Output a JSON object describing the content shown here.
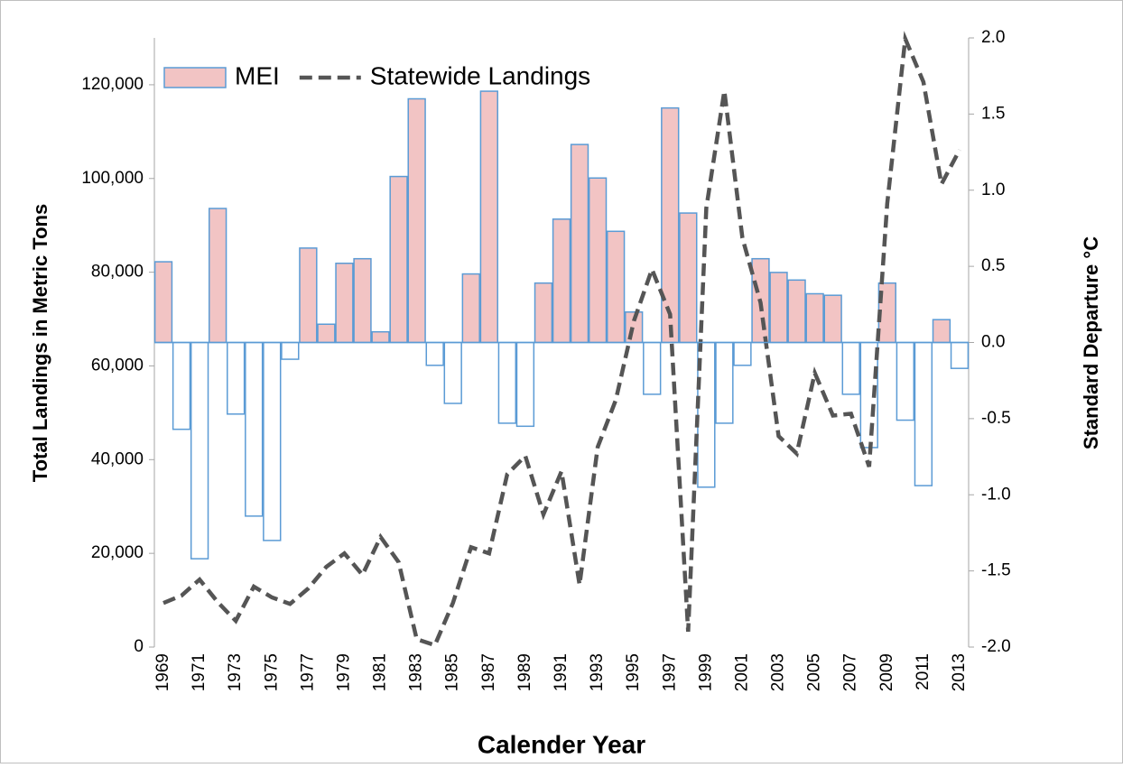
{
  "chart_data": {
    "type": "bar",
    "x_label": "Calender Year",
    "y_label": "Total Landings in Metric Tons",
    "y2_label": "Standard Departure °C",
    "categories": [
      "1969",
      null,
      "1971",
      null,
      "1973",
      null,
      "1975",
      null,
      "1977",
      null,
      "1979",
      null,
      "1981",
      null,
      "1983",
      null,
      "1985",
      null,
      "1987",
      null,
      "1989",
      null,
      "1991",
      null,
      "1993",
      null,
      "1995",
      null,
      "1997",
      null,
      "1999",
      null,
      "2001",
      null,
      "2003",
      null,
      "2005",
      null,
      "2007",
      null,
      "2009",
      null,
      "2011",
      null,
      "2013"
    ],
    "ylim": [
      0,
      130000
    ],
    "yticks": [
      0,
      {
        "value": 20000,
        "label": "20,000"
      },
      {
        "value": 40000,
        "label": "40,000"
      },
      {
        "value": 60000,
        "label": "60,000"
      },
      {
        "value": 80000,
        "label": "80,000"
      },
      {
        "value": 100000,
        "label": "100,000"
      },
      {
        "value": 120000,
        "label": "120,000"
      }
    ],
    "y2lim": [
      -2,
      2
    ],
    "y2ticks": [
      {
        "value": -2,
        "label": "-2.0"
      },
      {
        "value": -1.5,
        "label": "-1.5"
      },
      {
        "value": -1,
        "label": "-1.0"
      },
      {
        "value": -0.5,
        "label": "-0.5"
      },
      {
        "value": 0,
        "label": "0.0"
      },
      {
        "value": 0.5,
        "label": "0.5"
      },
      {
        "value": 1,
        "label": "1.0"
      },
      {
        "value": 1.5,
        "label": "1.5"
      },
      {
        "value": 2,
        "label": "2.0"
      }
    ],
    "legend": "upper left",
    "series": [
      {
        "name": "MEI",
        "type": "bar",
        "axis": "y2",
        "color": "#f2c4c4",
        "negative_color": "#ffffff",
        "edge_color": "#5b9bd5",
        "values": [
          0.53,
          -0.57,
          -1.42,
          0.88,
          -0.47,
          -1.14,
          -1.3,
          -0.11,
          0.62,
          0.12,
          0.52,
          0.55,
          0.07,
          1.09,
          1.6,
          -0.15,
          -0.4,
          0.45,
          1.65,
          -0.53,
          -0.55,
          0.39,
          0.81,
          1.3,
          1.08,
          0.73,
          0.2,
          -0.34,
          1.54,
          0.85,
          -0.95,
          -0.53,
          -0.15,
          0.55,
          0.46,
          0.41,
          0.32,
          0.31,
          -0.34,
          -0.69,
          0.39,
          -0.51,
          -0.94,
          0.15,
          -0.17
        ]
      },
      {
        "name": "Statewide Landings",
        "type": "line",
        "color": "#555555",
        "dashed": true,
        "values": [
          9400,
          11000,
          14400,
          9600,
          5600,
          12900,
          10600,
          9200,
          12500,
          17100,
          20000,
          15400,
          23500,
          18100,
          1700,
          400,
          9400,
          21300,
          20000,
          36900,
          40800,
          28300,
          37500,
          13300,
          42700,
          52700,
          69600,
          80600,
          71000,
          3300,
          93700,
          118700,
          87300,
          73500,
          45000,
          41300,
          58500,
          49400,
          49800,
          38500,
          94600,
          129800,
          120600,
          98800,
          106100
        ]
      }
    ]
  }
}
